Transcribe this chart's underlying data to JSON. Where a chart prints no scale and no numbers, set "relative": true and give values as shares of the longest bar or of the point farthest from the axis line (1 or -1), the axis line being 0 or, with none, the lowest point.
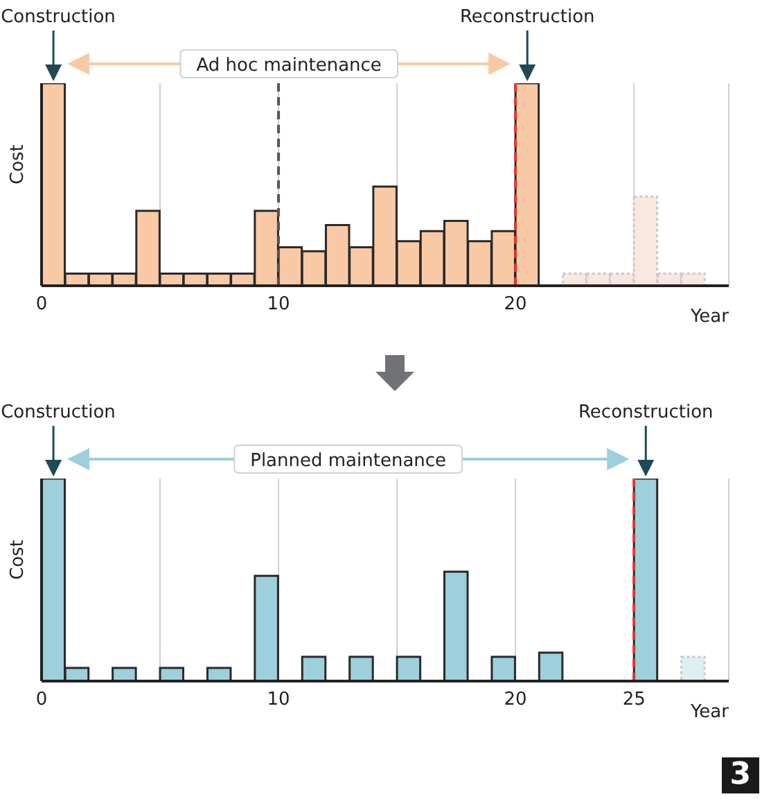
{
  "chart_data": [
    {
      "type": "bar",
      "relative": true,
      "xlabel": "Year",
      "ylabel": "Cost",
      "xlim": [
        0,
        29
      ],
      "xticks": [
        0,
        {
          "value": 5,
          "label": null
        },
        10,
        {
          "value": 15,
          "label": null
        },
        20,
        {
          "value": 25,
          "label": null
        }
      ],
      "grid": "x",
      "x": [
        0.5,
        1.5,
        2.5,
        3.5,
        4.5,
        5.5,
        6.5,
        7.5,
        8.5,
        9.5,
        10.5,
        11.5,
        12.5,
        13.5,
        14.5,
        15.5,
        16.5,
        17.5,
        18.5,
        19.5,
        20.5,
        22.5,
        23.5,
        24.5,
        25.5,
        26.5,
        27.5
      ],
      "values": [
        1,
        0.06,
        0.06,
        0.06,
        0.37,
        0.06,
        0.06,
        0.06,
        0.06,
        0.37,
        0.19,
        0.17,
        0.3,
        0.19,
        0.49,
        0.22,
        0.27,
        0.32,
        0.22,
        0.27,
        1,
        0.06,
        0.06,
        0.06,
        0.44,
        0.06,
        0.06
      ],
      "colors": [
        "#f9c9a6",
        "#f9c9a6",
        "#f9c9a6",
        "#f9c9a6",
        "#f9c9a6",
        "#f9c9a6",
        "#f9c9a6",
        "#f9c9a6",
        "#f9c9a6",
        "#f9c9a6",
        "#f9c9a6",
        "#f9c9a6",
        "#f9c9a6",
        "#f9c9a6",
        "#f9c9a6",
        "#f9c9a6",
        "#f9c9a6",
        "#f9c9a6",
        "#f9c9a6",
        "#f9c9a6",
        "#f9c9a6",
        "#f8e8de",
        "#f8e8de",
        "#f8e8de",
        "#f8e8de",
        "#f8e8de",
        "#f8e8de"
      ],
      "ref_lines": [
        {
          "axis": "x",
          "value": 10,
          "color": "#555555",
          "line_style": "dashed"
        },
        {
          "axis": "x",
          "value": 20,
          "color": "#e8352a",
          "line_style": "dashed"
        }
      ],
      "annotations": [
        {
          "text": "Construction",
          "x": 0.5,
          "y": 1
        },
        {
          "text": "Reconstruction",
          "x": 20.5,
          "y": 1
        },
        "Ad hoc maintenance"
      ]
    },
    {
      "type": "bar",
      "relative": true,
      "xlabel": "Year",
      "ylabel": "Cost",
      "xlim": [
        0,
        29
      ],
      "xticks": [
        0,
        {
          "value": 5,
          "label": null
        },
        10,
        {
          "value": 15,
          "label": null
        },
        20,
        25
      ],
      "grid": "x",
      "x": [
        0.5,
        1.5,
        3.5,
        5.5,
        7.5,
        9.5,
        11.5,
        13.5,
        15.5,
        17.5,
        19.5,
        21.5,
        25.5,
        27.5
      ],
      "values": [
        1,
        0.065,
        0.065,
        0.065,
        0.065,
        0.52,
        0.12,
        0.12,
        0.12,
        0.54,
        0.12,
        0.14,
        1,
        0.12
      ],
      "colors": [
        "#9dcfdc",
        "#9dcfdc",
        "#9dcfdc",
        "#9dcfdc",
        "#9dcfdc",
        "#9dcfdc",
        "#9dcfdc",
        "#9dcfdc",
        "#9dcfdc",
        "#9dcfdc",
        "#9dcfdc",
        "#9dcfdc",
        "#9dcfdc",
        "#ddeff3"
      ],
      "ref_lines": [
        {
          "axis": "x",
          "value": 25,
          "color": "#e8352a",
          "line_style": "dashed"
        }
      ],
      "annotations": [
        {
          "text": "Construction",
          "x": 0.5,
          "y": 1
        },
        {
          "text": "Reconstruction",
          "x": 25.5,
          "y": 1
        },
        "Planned maintenance",
        "3"
      ]
    }
  ]
}
